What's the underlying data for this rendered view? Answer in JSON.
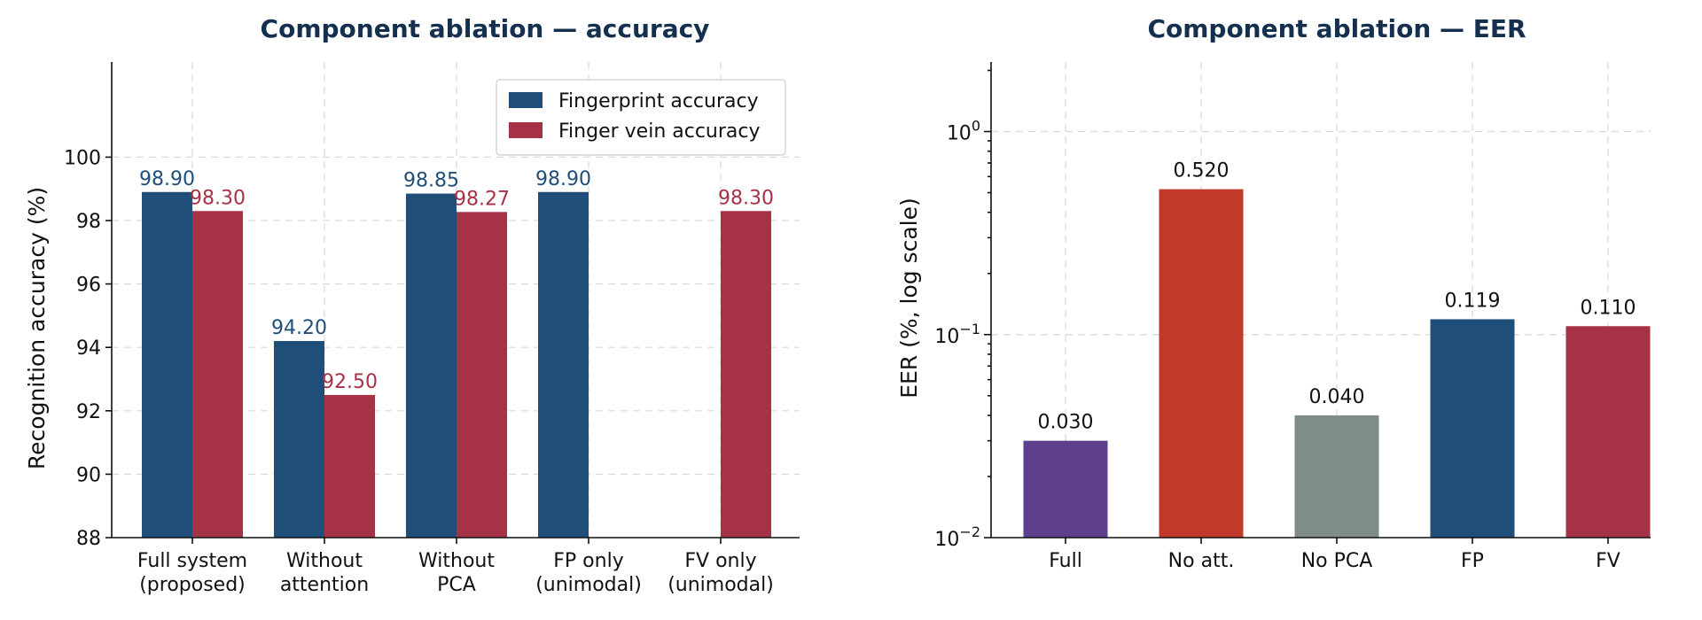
{
  "chart_data": [
    {
      "type": "bar",
      "title": "Component ablation — accuracy",
      "ylabel": "Recognition accuracy (%)",
      "xlabel": "",
      "ylim": [
        88,
        103
      ],
      "yticks": [
        88,
        90,
        92,
        94,
        96,
        98,
        100
      ],
      "grid": true,
      "legend_position": "top-right",
      "categories": [
        [
          "Full system",
          "(proposed)"
        ],
        [
          "Without",
          "attention"
        ],
        [
          "Without",
          "PCA"
        ],
        [
          "FP only",
          "(unimodal)"
        ],
        [
          "FV only",
          "(unimodal)"
        ]
      ],
      "series": [
        {
          "name": "Fingerprint accuracy",
          "color": "#1f4e79",
          "values": [
            98.9,
            94.2,
            98.85,
            98.9,
            null
          ],
          "labels": [
            "98.90",
            "94.20",
            "98.85",
            "98.90",
            ""
          ]
        },
        {
          "name": "Finger vein accuracy",
          "color": "#a63246",
          "values": [
            98.3,
            92.5,
            98.27,
            null,
            98.3
          ],
          "labels": [
            "98.30",
            "92.50",
            "98.27",
            "",
            "98.30"
          ]
        }
      ]
    },
    {
      "type": "bar",
      "title": "Component ablation — EER",
      "ylabel": "EER (%, log scale)",
      "xlabel": "",
      "yscale": "log",
      "ylim": [
        0.01,
        2.2
      ],
      "yticks": [
        {
          "base": "10",
          "exp": "−2",
          "value": 0.01
        },
        {
          "base": "10",
          "exp": "−1",
          "value": 0.1
        },
        {
          "base": "10",
          "exp": "0",
          "value": 1
        }
      ],
      "grid": true,
      "categories": [
        "Full",
        "No att.",
        "No PCA",
        "FP",
        "FV"
      ],
      "values": [
        0.03,
        0.52,
        0.04,
        0.119,
        0.11
      ],
      "labels": [
        "0.030",
        "0.520",
        "0.040",
        "0.119",
        "0.110"
      ],
      "colors": [
        "#5e3f8e",
        "#c0392b",
        "#7f8c8a",
        "#1f4e79",
        "#a63246"
      ]
    }
  ],
  "colors": {
    "title": "#14304e",
    "text": "#111111",
    "grid": "#d9d9d9"
  }
}
